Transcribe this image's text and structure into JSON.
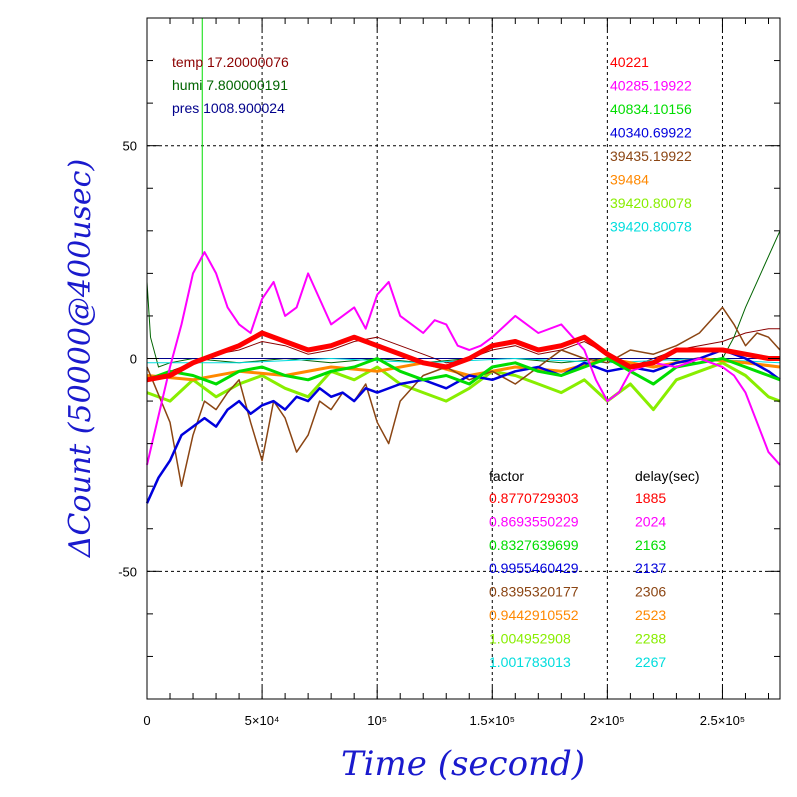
{
  "chart_data": {
    "type": "line",
    "xlabel": "Time (second)",
    "ylabel": "ΔCount (50000@400usec)",
    "xlim": [
      0,
      275000
    ],
    "ylim": [
      -80,
      80
    ],
    "grid": true,
    "x_tick_labels": [
      {
        "value": 0,
        "label": "0"
      },
      {
        "value": 50000,
        "label": "5×10⁴"
      },
      {
        "value": 100000,
        "label": "10⁵"
      },
      {
        "value": 150000,
        "label": "1.5×10⁵"
      },
      {
        "value": 200000,
        "label": "2×10⁵"
      },
      {
        "value": 250000,
        "label": "2.5×10⁵"
      }
    ],
    "y_tick_labels": [
      {
        "value": 50,
        "label": "50"
      },
      {
        "value": 0,
        "label": "0"
      },
      {
        "value": -50,
        "label": "-50"
      }
    ],
    "env": [
      {
        "label": "temp 17.20000076",
        "color": "#8b0000",
        "x": [
          0,
          10000,
          20000,
          30000,
          40000,
          50000,
          60000,
          70000,
          80000,
          90000,
          100000,
          110000,
          120000,
          130000,
          140000,
          150000,
          160000,
          170000,
          180000,
          190000,
          200000,
          210000,
          220000,
          230000,
          240000,
          250000,
          260000,
          270000,
          275000
        ],
        "y": [
          -5,
          -3,
          -1,
          1,
          2,
          4,
          3,
          1,
          2,
          4,
          5,
          3,
          1,
          -1,
          0,
          2,
          3,
          1,
          2,
          4,
          1,
          -2,
          0,
          2,
          3,
          4,
          6,
          7,
          7
        ]
      },
      {
        "label": "humi 7.800000191",
        "color": "#006400",
        "x": [
          0,
          1500,
          5000,
          10000,
          20000,
          40000,
          60000,
          80000,
          100000,
          120000,
          140000,
          160000,
          180000,
          200000,
          220000,
          240000,
          250000,
          255000,
          260000,
          265000,
          270000,
          275000
        ],
        "y": [
          18,
          5,
          -2,
          -1,
          0,
          -1,
          0,
          -1,
          0,
          -1,
          0,
          0,
          -1,
          0,
          0,
          -1,
          0,
          5,
          12,
          18,
          24,
          30
        ]
      },
      {
        "label": "pres 1008.900024",
        "color": "#00008b",
        "x": [
          0,
          20000,
          40000,
          60000,
          80000,
          100000,
          120000,
          140000,
          160000,
          180000,
          200000,
          220000,
          240000,
          260000,
          275000
        ],
        "y": [
          0,
          0,
          0,
          0,
          0,
          0,
          0,
          0,
          0,
          0,
          0,
          0,
          0,
          0,
          0
        ]
      }
    ],
    "series": [
      {
        "color": "#ff0000",
        "factor": "0.8770729303",
        "delay": "1885",
        "mean": "40221",
        "x": [
          0,
          10000,
          20000,
          30000,
          40000,
          50000,
          60000,
          70000,
          80000,
          90000,
          100000,
          110000,
          120000,
          130000,
          140000,
          150000,
          160000,
          170000,
          180000,
          190000,
          200000,
          210000,
          220000,
          230000,
          240000,
          250000,
          260000,
          270000,
          275000
        ],
        "y": [
          -5,
          -4,
          -1,
          1,
          3,
          6,
          4,
          2,
          3,
          5,
          3,
          1,
          -1,
          -2,
          0,
          3,
          4,
          2,
          3,
          5,
          1,
          -2,
          -1,
          2,
          2,
          2,
          1,
          0,
          0
        ]
      },
      {
        "color": "#ff00ff",
        "factor": "0.8693550229",
        "delay": "2024",
        "mean": "40285.19922",
        "x": [
          0,
          10000,
          15000,
          20000,
          25000,
          30000,
          35000,
          40000,
          45000,
          50000,
          55000,
          60000,
          65000,
          70000,
          75000,
          80000,
          85000,
          90000,
          95000,
          100000,
          105000,
          110000,
          115000,
          120000,
          125000,
          130000,
          135000,
          140000,
          145000,
          150000,
          160000,
          170000,
          180000,
          190000,
          195000,
          200000,
          205000,
          210000,
          220000,
          230000,
          240000,
          250000,
          255000,
          260000,
          265000,
          270000,
          275000
        ],
        "y": [
          -25,
          -2,
          8,
          20,
          25,
          20,
          12,
          8,
          6,
          14,
          18,
          10,
          12,
          20,
          14,
          8,
          10,
          12,
          7,
          15,
          18,
          10,
          8,
          6,
          9,
          8,
          3,
          2,
          3,
          5,
          10,
          6,
          8,
          2,
          -5,
          -10,
          -8,
          -3,
          -1,
          -2,
          0,
          -2,
          -4,
          -8,
          -15,
          -22,
          -25
        ]
      },
      {
        "color": "#00dd00",
        "factor": "0.8327639699",
        "delay": "2163",
        "mean": "40834.10156",
        "x": [
          0,
          10000,
          20000,
          30000,
          40000,
          50000,
          60000,
          70000,
          80000,
          90000,
          100000,
          110000,
          120000,
          130000,
          140000,
          150000,
          160000,
          170000,
          180000,
          190000,
          200000,
          210000,
          220000,
          230000,
          240000,
          250000,
          260000,
          270000,
          275000
        ],
        "y": [
          -5,
          -3,
          -4,
          -6,
          -3,
          -2,
          -4,
          -5,
          -3,
          -2,
          0,
          -3,
          -5,
          -4,
          -6,
          -2,
          -1,
          -3,
          -4,
          -2,
          0,
          -3,
          -6,
          -2,
          -1,
          0,
          -2,
          -4,
          -5
        ]
      },
      {
        "color": "#0000dd",
        "factor": "0.9955460429",
        "delay": "2137",
        "mean": "40340.69922",
        "x": [
          0,
          5000,
          10000,
          15000,
          20000,
          25000,
          30000,
          35000,
          40000,
          45000,
          50000,
          55000,
          60000,
          65000,
          70000,
          75000,
          80000,
          85000,
          90000,
          95000,
          100000,
          110000,
          120000,
          130000,
          140000,
          150000,
          160000,
          170000,
          180000,
          190000,
          200000,
          210000,
          220000,
          230000,
          240000,
          250000,
          260000,
          270000,
          275000
        ],
        "y": [
          -34,
          -28,
          -24,
          -18,
          -16,
          -14,
          -16,
          -12,
          -10,
          -13,
          -11,
          -10,
          -12,
          -9,
          -10,
          -7,
          -9,
          -8,
          -10,
          -7,
          -8,
          -6,
          -5,
          -7,
          -4,
          -5,
          -3,
          -2,
          -4,
          -1,
          -3,
          -2,
          -3,
          -1,
          0,
          2,
          0,
          -3,
          -5
        ]
      },
      {
        "color": "#8b4513",
        "factor": "0.8395320177",
        "delay": "2306",
        "mean": "39435.19922",
        "x": [
          0,
          10000,
          15000,
          20000,
          25000,
          30000,
          35000,
          40000,
          45000,
          50000,
          55000,
          60000,
          65000,
          70000,
          75000,
          80000,
          85000,
          90000,
          95000,
          100000,
          105000,
          110000,
          120000,
          130000,
          140000,
          150000,
          160000,
          170000,
          180000,
          190000,
          200000,
          210000,
          220000,
          230000,
          240000,
          250000,
          255000,
          260000,
          265000,
          270000,
          275000
        ],
        "y": [
          -2,
          -15,
          -30,
          -18,
          -10,
          -12,
          -8,
          -5,
          -15,
          -24,
          -10,
          -14,
          -22,
          -18,
          -10,
          -12,
          -8,
          -10,
          -6,
          -15,
          -20,
          -10,
          -4,
          -2,
          -5,
          -3,
          -6,
          -2,
          2,
          0,
          -1,
          2,
          1,
          3,
          6,
          12,
          8,
          3,
          6,
          5,
          2
        ]
      },
      {
        "color": "#ff8800",
        "factor": "0.9442910552",
        "delay": "2523",
        "mean": "39484",
        "x": [
          0,
          20000,
          40000,
          60000,
          80000,
          100000,
          120000,
          140000,
          160000,
          180000,
          200000,
          220000,
          240000,
          260000,
          275000
        ],
        "y": [
          -4,
          -5,
          -3,
          -4,
          -2,
          -3,
          -1,
          -4,
          -2,
          -3,
          0,
          -2,
          0,
          -1,
          -2
        ]
      },
      {
        "color": "#88ee00",
        "factor": "1.004952908",
        "delay": "2288",
        "mean": "39420.80078",
        "x": [
          0,
          10000,
          20000,
          30000,
          40000,
          50000,
          60000,
          70000,
          80000,
          90000,
          100000,
          110000,
          120000,
          130000,
          140000,
          150000,
          160000,
          170000,
          180000,
          190000,
          200000,
          210000,
          220000,
          230000,
          240000,
          250000,
          260000,
          270000,
          275000
        ],
        "y": [
          -8,
          -10,
          -5,
          -9,
          -6,
          -4,
          -7,
          -9,
          -3,
          -5,
          -2,
          -6,
          -8,
          -10,
          -7,
          -3,
          -4,
          -6,
          -8,
          -5,
          -10,
          -6,
          -12,
          -5,
          -3,
          -1,
          -4,
          -9,
          -10
        ]
      },
      {
        "color": "#00dddd",
        "factor": "1.001783013",
        "delay": "2267",
        "mean": "39420.80078",
        "x": [
          0,
          40000,
          80000,
          120000,
          160000,
          200000,
          240000,
          275000
        ],
        "y": [
          -1,
          -1,
          0,
          -1,
          0,
          -1,
          0,
          -1
        ]
      }
    ],
    "factor_header": "factor",
    "delay_header": "delay(sec)",
    "spike": {
      "x": 24000,
      "color": "#00dd00"
    }
  }
}
